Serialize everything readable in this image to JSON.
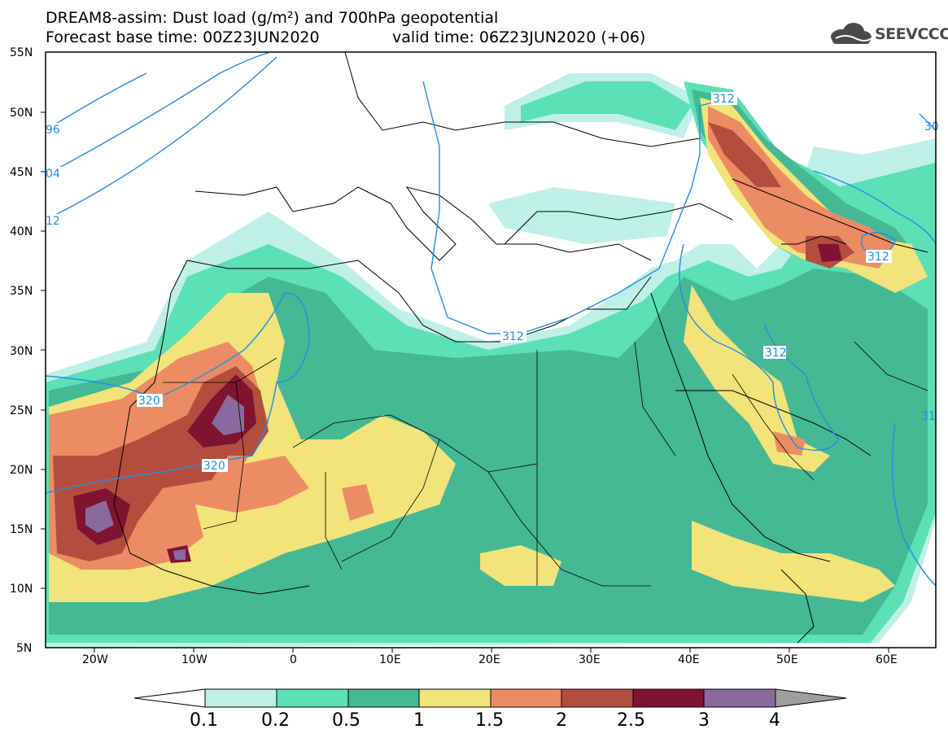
{
  "title": {
    "line1": "DREAM8-assim: Dust load (g/m²) and 700hPa geopotential",
    "line2": "Forecast base time: 00Z23JUN2020",
    "valid": "valid time: 06Z23JUN2020 (+06)"
  },
  "logo": {
    "text": "SEEVCCC",
    "icon": "cloud-icon"
  },
  "axes": {
    "lat_labels": [
      "55N",
      "50N",
      "45N",
      "40N",
      "35N",
      "30N",
      "25N",
      "20N",
      "15N",
      "10N",
      "5N"
    ],
    "lon_labels": [
      "20W",
      "10W",
      "0",
      "10E",
      "20E",
      "30E",
      "40E",
      "50E",
      "60E"
    ]
  },
  "contours": {
    "labels": [
      "312",
      "312",
      "312",
      "312",
      "320",
      "320",
      "96",
      "04",
      "12",
      "31",
      "30"
    ]
  },
  "colorbar": {
    "labels": [
      "0.1",
      "0.2",
      "0.5",
      "1",
      "1.5",
      "2",
      "2.5",
      "3",
      "4"
    ],
    "colors": [
      "#bff0e8",
      "#5ce0b5",
      "#45b894",
      "#f2e37a",
      "#ec8c64",
      "#b34e3e",
      "#7e1430",
      "#8a6a9e",
      "#9e9e9e"
    ]
  },
  "colors": {
    "contour": "#1e90e6",
    "coast": "#000000"
  }
}
